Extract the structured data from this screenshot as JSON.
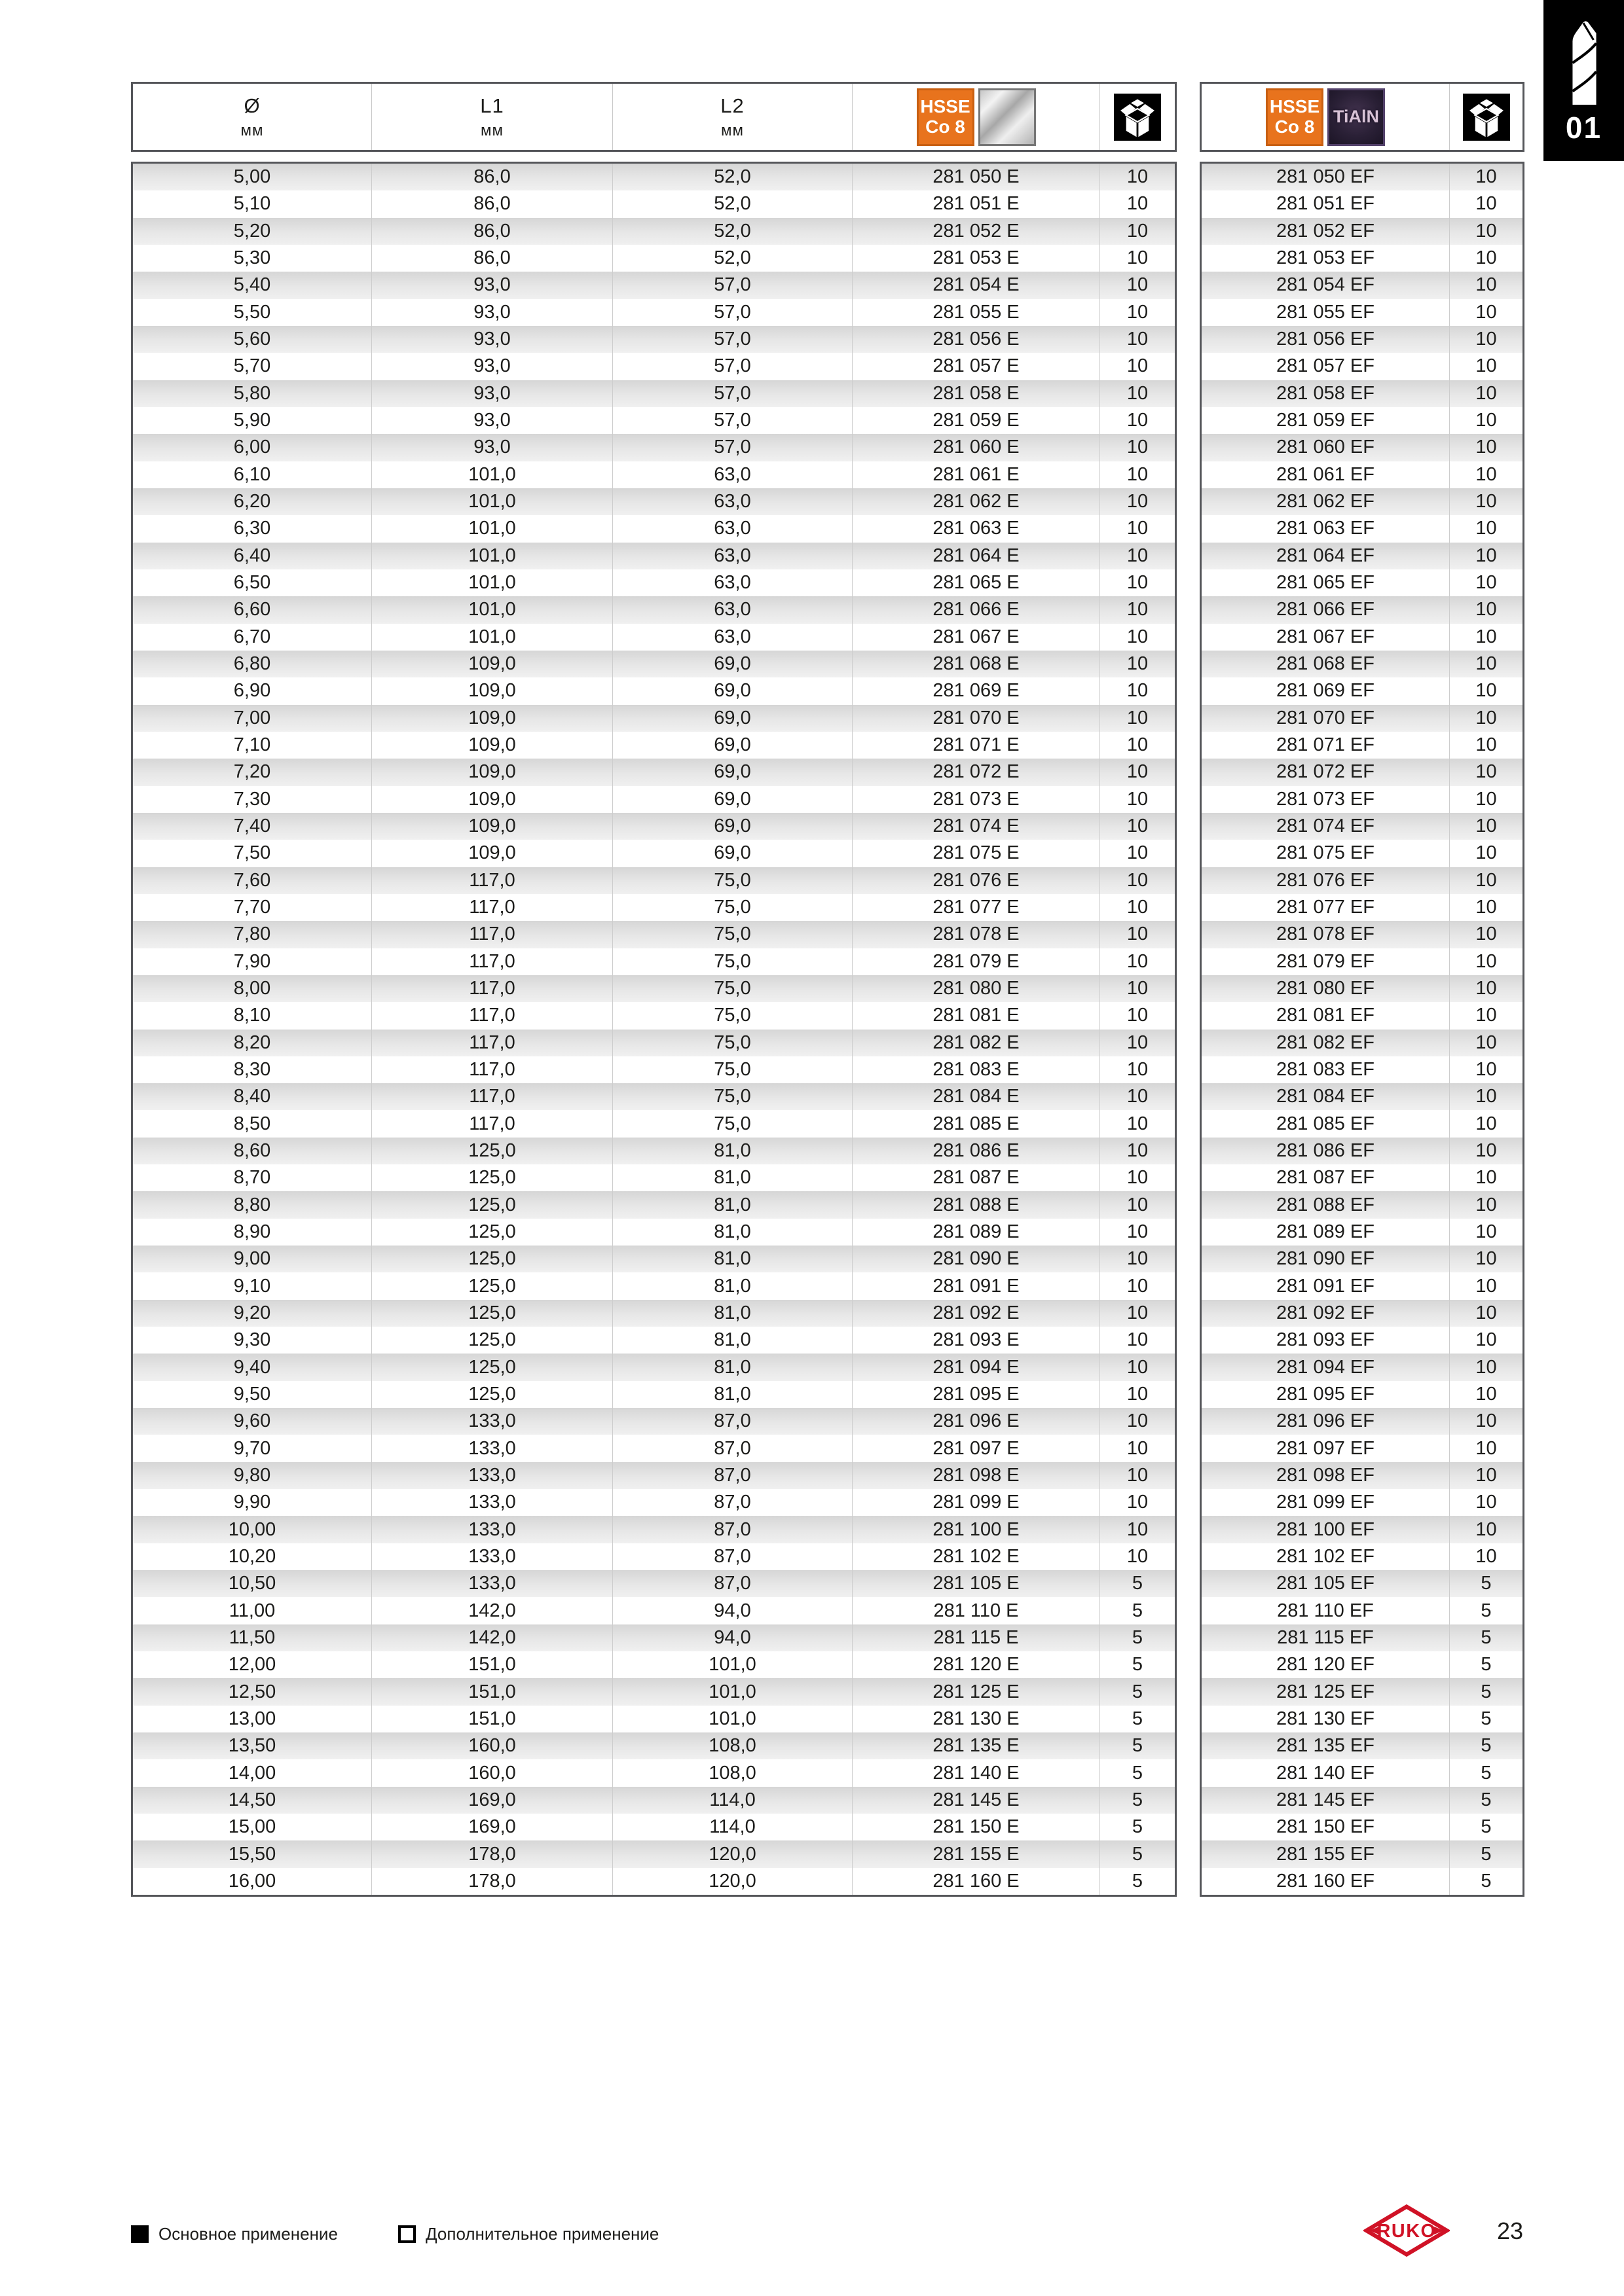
{
  "section_tab": {
    "number": "01"
  },
  "header_columns": {
    "diameter": {
      "symbol": "Ø",
      "unit": "мм"
    },
    "l1": {
      "label": "L1",
      "unit": "мм"
    },
    "l2": {
      "label": "L2",
      "unit": "мм"
    }
  },
  "badges": {
    "hsse_line1": "HSSE",
    "hsse_line2": "Co 8",
    "tialn": "TiAlN"
  },
  "legend": {
    "primary": "Основное применение",
    "secondary": "Дополнительное применение"
  },
  "brand": "RUKO",
  "page_number": "23",
  "colors": {
    "hsse_badge_orange": "#e8731d",
    "tialn_badge_purple": "#2a2036",
    "brand_red": "#d01226",
    "table_border_gray": "#55565a",
    "stripe_gray": "#e0e0e0"
  },
  "rows": [
    {
      "d": "5,00",
      "l1": "86,0",
      "l2": "52,0",
      "e": "281 050 E",
      "qe": "10",
      "ef": "281 050 EF",
      "qef": "10"
    },
    {
      "d": "5,10",
      "l1": "86,0",
      "l2": "52,0",
      "e": "281 051 E",
      "qe": "10",
      "ef": "281 051 EF",
      "qef": "10"
    },
    {
      "d": "5,20",
      "l1": "86,0",
      "l2": "52,0",
      "e": "281 052 E",
      "qe": "10",
      "ef": "281 052 EF",
      "qef": "10"
    },
    {
      "d": "5,30",
      "l1": "86,0",
      "l2": "52,0",
      "e": "281 053 E",
      "qe": "10",
      "ef": "281 053 EF",
      "qef": "10"
    },
    {
      "d": "5,40",
      "l1": "93,0",
      "l2": "57,0",
      "e": "281 054 E",
      "qe": "10",
      "ef": "281 054 EF",
      "qef": "10"
    },
    {
      "d": "5,50",
      "l1": "93,0",
      "l2": "57,0",
      "e": "281 055 E",
      "qe": "10",
      "ef": "281 055 EF",
      "qef": "10"
    },
    {
      "d": "5,60",
      "l1": "93,0",
      "l2": "57,0",
      "e": "281 056 E",
      "qe": "10",
      "ef": "281 056 EF",
      "qef": "10"
    },
    {
      "d": "5,70",
      "l1": "93,0",
      "l2": "57,0",
      "e": "281 057 E",
      "qe": "10",
      "ef": "281 057 EF",
      "qef": "10"
    },
    {
      "d": "5,80",
      "l1": "93,0",
      "l2": "57,0",
      "e": "281 058 E",
      "qe": "10",
      "ef": "281 058 EF",
      "qef": "10"
    },
    {
      "d": "5,90",
      "l1": "93,0",
      "l2": "57,0",
      "e": "281 059 E",
      "qe": "10",
      "ef": "281 059 EF",
      "qef": "10"
    },
    {
      "d": "6,00",
      "l1": "93,0",
      "l2": "57,0",
      "e": "281 060 E",
      "qe": "10",
      "ef": "281 060 EF",
      "qef": "10"
    },
    {
      "d": "6,10",
      "l1": "101,0",
      "l2": "63,0",
      "e": "281 061 E",
      "qe": "10",
      "ef": "281 061 EF",
      "qef": "10"
    },
    {
      "d": "6,20",
      "l1": "101,0",
      "l2": "63,0",
      "e": "281 062 E",
      "qe": "10",
      "ef": "281 062 EF",
      "qef": "10"
    },
    {
      "d": "6,30",
      "l1": "101,0",
      "l2": "63,0",
      "e": "281 063 E",
      "qe": "10",
      "ef": "281 063 EF",
      "qef": "10"
    },
    {
      "d": "6,40",
      "l1": "101,0",
      "l2": "63,0",
      "e": "281 064 E",
      "qe": "10",
      "ef": "281 064 EF",
      "qef": "10"
    },
    {
      "d": "6,50",
      "l1": "101,0",
      "l2": "63,0",
      "e": "281 065 E",
      "qe": "10",
      "ef": "281 065 EF",
      "qef": "10"
    },
    {
      "d": "6,60",
      "l1": "101,0",
      "l2": "63,0",
      "e": "281 066 E",
      "qe": "10",
      "ef": "281 066 EF",
      "qef": "10"
    },
    {
      "d": "6,70",
      "l1": "101,0",
      "l2": "63,0",
      "e": "281 067 E",
      "qe": "10",
      "ef": "281 067 EF",
      "qef": "10"
    },
    {
      "d": "6,80",
      "l1": "109,0",
      "l2": "69,0",
      "e": "281 068 E",
      "qe": "10",
      "ef": "281 068 EF",
      "qef": "10"
    },
    {
      "d": "6,90",
      "l1": "109,0",
      "l2": "69,0",
      "e": "281 069 E",
      "qe": "10",
      "ef": "281 069 EF",
      "qef": "10"
    },
    {
      "d": "7,00",
      "l1": "109,0",
      "l2": "69,0",
      "e": "281 070 E",
      "qe": "10",
      "ef": "281 070 EF",
      "qef": "10"
    },
    {
      "d": "7,10",
      "l1": "109,0",
      "l2": "69,0",
      "e": "281 071 E",
      "qe": "10",
      "ef": "281 071 EF",
      "qef": "10"
    },
    {
      "d": "7,20",
      "l1": "109,0",
      "l2": "69,0",
      "e": "281 072 E",
      "qe": "10",
      "ef": "281 072 EF",
      "qef": "10"
    },
    {
      "d": "7,30",
      "l1": "109,0",
      "l2": "69,0",
      "e": "281 073 E",
      "qe": "10",
      "ef": "281 073 EF",
      "qef": "10"
    },
    {
      "d": "7,40",
      "l1": "109,0",
      "l2": "69,0",
      "e": "281 074 E",
      "qe": "10",
      "ef": "281 074 EF",
      "qef": "10"
    },
    {
      "d": "7,50",
      "l1": "109,0",
      "l2": "69,0",
      "e": "281 075 E",
      "qe": "10",
      "ef": "281 075 EF",
      "qef": "10"
    },
    {
      "d": "7,60",
      "l1": "117,0",
      "l2": "75,0",
      "e": "281 076 E",
      "qe": "10",
      "ef": "281 076 EF",
      "qef": "10"
    },
    {
      "d": "7,70",
      "l1": "117,0",
      "l2": "75,0",
      "e": "281 077 E",
      "qe": "10",
      "ef": "281 077 EF",
      "qef": "10"
    },
    {
      "d": "7,80",
      "l1": "117,0",
      "l2": "75,0",
      "e": "281 078 E",
      "qe": "10",
      "ef": "281 078 EF",
      "qef": "10"
    },
    {
      "d": "7,90",
      "l1": "117,0",
      "l2": "75,0",
      "e": "281 079 E",
      "qe": "10",
      "ef": "281 079 EF",
      "qef": "10"
    },
    {
      "d": "8,00",
      "l1": "117,0",
      "l2": "75,0",
      "e": "281 080 E",
      "qe": "10",
      "ef": "281 080 EF",
      "qef": "10"
    },
    {
      "d": "8,10",
      "l1": "117,0",
      "l2": "75,0",
      "e": "281 081 E",
      "qe": "10",
      "ef": "281 081 EF",
      "qef": "10"
    },
    {
      "d": "8,20",
      "l1": "117,0",
      "l2": "75,0",
      "e": "281 082 E",
      "qe": "10",
      "ef": "281 082 EF",
      "qef": "10"
    },
    {
      "d": "8,30",
      "l1": "117,0",
      "l2": "75,0",
      "e": "281 083 E",
      "qe": "10",
      "ef": "281 083 EF",
      "qef": "10"
    },
    {
      "d": "8,40",
      "l1": "117,0",
      "l2": "75,0",
      "e": "281 084 E",
      "qe": "10",
      "ef": "281 084 EF",
      "qef": "10"
    },
    {
      "d": "8,50",
      "l1": "117,0",
      "l2": "75,0",
      "e": "281 085 E",
      "qe": "10",
      "ef": "281 085 EF",
      "qef": "10"
    },
    {
      "d": "8,60",
      "l1": "125,0",
      "l2": "81,0",
      "e": "281 086 E",
      "qe": "10",
      "ef": "281 086 EF",
      "qef": "10"
    },
    {
      "d": "8,70",
      "l1": "125,0",
      "l2": "81,0",
      "e": "281 087 E",
      "qe": "10",
      "ef": "281 087 EF",
      "qef": "10"
    },
    {
      "d": "8,80",
      "l1": "125,0",
      "l2": "81,0",
      "e": "281 088 E",
      "qe": "10",
      "ef": "281 088 EF",
      "qef": "10"
    },
    {
      "d": "8,90",
      "l1": "125,0",
      "l2": "81,0",
      "e": "281 089 E",
      "qe": "10",
      "ef": "281 089 EF",
      "qef": "10"
    },
    {
      "d": "9,00",
      "l1": "125,0",
      "l2": "81,0",
      "e": "281 090 E",
      "qe": "10",
      "ef": "281 090 EF",
      "qef": "10"
    },
    {
      "d": "9,10",
      "l1": "125,0",
      "l2": "81,0",
      "e": "281 091 E",
      "qe": "10",
      "ef": "281 091 EF",
      "qef": "10"
    },
    {
      "d": "9,20",
      "l1": "125,0",
      "l2": "81,0",
      "e": "281 092 E",
      "qe": "10",
      "ef": "281 092 EF",
      "qef": "10"
    },
    {
      "d": "9,30",
      "l1": "125,0",
      "l2": "81,0",
      "e": "281 093 E",
      "qe": "10",
      "ef": "281 093 EF",
      "qef": "10"
    },
    {
      "d": "9,40",
      "l1": "125,0",
      "l2": "81,0",
      "e": "281 094 E",
      "qe": "10",
      "ef": "281 094 EF",
      "qef": "10"
    },
    {
      "d": "9,50",
      "l1": "125,0",
      "l2": "81,0",
      "e": "281 095 E",
      "qe": "10",
      "ef": "281 095 EF",
      "qef": "10"
    },
    {
      "d": "9,60",
      "l1": "133,0",
      "l2": "87,0",
      "e": "281 096 E",
      "qe": "10",
      "ef": "281 096 EF",
      "qef": "10"
    },
    {
      "d": "9,70",
      "l1": "133,0",
      "l2": "87,0",
      "e": "281 097 E",
      "qe": "10",
      "ef": "281 097 EF",
      "qef": "10"
    },
    {
      "d": "9,80",
      "l1": "133,0",
      "l2": "87,0",
      "e": "281 098 E",
      "qe": "10",
      "ef": "281 098 EF",
      "qef": "10"
    },
    {
      "d": "9,90",
      "l1": "133,0",
      "l2": "87,0",
      "e": "281 099 E",
      "qe": "10",
      "ef": "281 099 EF",
      "qef": "10"
    },
    {
      "d": "10,00",
      "l1": "133,0",
      "l2": "87,0",
      "e": "281 100 E",
      "qe": "10",
      "ef": "281 100 EF",
      "qef": "10"
    },
    {
      "d": "10,20",
      "l1": "133,0",
      "l2": "87,0",
      "e": "281 102 E",
      "qe": "10",
      "ef": "281 102 EF",
      "qef": "10"
    },
    {
      "d": "10,50",
      "l1": "133,0",
      "l2": "87,0",
      "e": "281 105 E",
      "qe": "5",
      "ef": "281 105 EF",
      "qef": "5"
    },
    {
      "d": "11,00",
      "l1": "142,0",
      "l2": "94,0",
      "e": "281 110 E",
      "qe": "5",
      "ef": "281 110 EF",
      "qef": "5"
    },
    {
      "d": "11,50",
      "l1": "142,0",
      "l2": "94,0",
      "e": "281 115 E",
      "qe": "5",
      "ef": "281 115 EF",
      "qef": "5"
    },
    {
      "d": "12,00",
      "l1": "151,0",
      "l2": "101,0",
      "e": "281 120 E",
      "qe": "5",
      "ef": "281 120 EF",
      "qef": "5"
    },
    {
      "d": "12,50",
      "l1": "151,0",
      "l2": "101,0",
      "e": "281 125 E",
      "qe": "5",
      "ef": "281 125 EF",
      "qef": "5"
    },
    {
      "d": "13,00",
      "l1": "151,0",
      "l2": "101,0",
      "e": "281 130 E",
      "qe": "5",
      "ef": "281 130 EF",
      "qef": "5"
    },
    {
      "d": "13,50",
      "l1": "160,0",
      "l2": "108,0",
      "e": "281 135 E",
      "qe": "5",
      "ef": "281 135 EF",
      "qef": "5"
    },
    {
      "d": "14,00",
      "l1": "160,0",
      "l2": "108,0",
      "e": "281 140 E",
      "qe": "5",
      "ef": "281 140 EF",
      "qef": "5"
    },
    {
      "d": "14,50",
      "l1": "169,0",
      "l2": "114,0",
      "e": "281 145 E",
      "qe": "5",
      "ef": "281 145 EF",
      "qef": "5"
    },
    {
      "d": "15,00",
      "l1": "169,0",
      "l2": "114,0",
      "e": "281 150 E",
      "qe": "5",
      "ef": "281 150 EF",
      "qef": "5"
    },
    {
      "d": "15,50",
      "l1": "178,0",
      "l2": "120,0",
      "e": "281 155 E",
      "qe": "5",
      "ef": "281 155 EF",
      "qef": "5"
    },
    {
      "d": "16,00",
      "l1": "178,0",
      "l2": "120,0",
      "e": "281 160 E",
      "qe": "5",
      "ef": "281 160 EF",
      "qef": "5"
    }
  ]
}
